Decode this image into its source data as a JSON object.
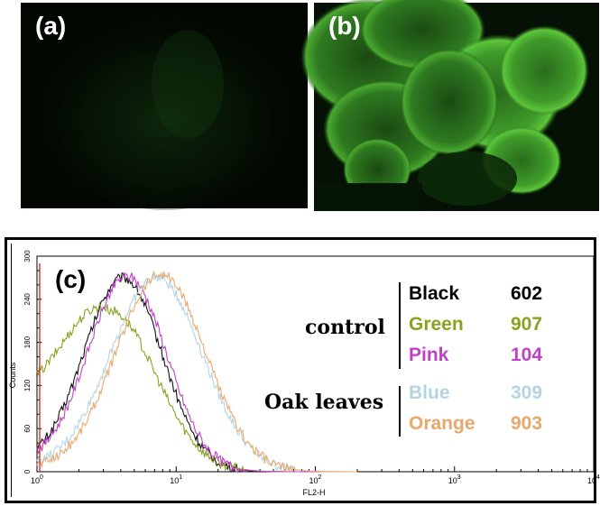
{
  "panels": {
    "a": {
      "label": "(a)"
    },
    "b": {
      "label": "(b)"
    },
    "c": {
      "label": "(c)"
    }
  },
  "histogram": {
    "x_axis_label": "FL2-H",
    "y_axis_label": "Counts",
    "y_ticks": [
      "0",
      "60",
      "120",
      "180",
      "240",
      "300"
    ],
    "x_ticks": [
      {
        "base": "10",
        "exp": "0"
      },
      {
        "base": "10",
        "exp": "1"
      },
      {
        "base": "10",
        "exp": "2"
      },
      {
        "base": "10",
        "exp": "3"
      },
      {
        "base": "10",
        "exp": "4"
      }
    ],
    "groups": {
      "control": "control",
      "oak": "Oak leaves"
    },
    "legend": [
      {
        "name": "Black",
        "value": "602",
        "color": "#111111"
      },
      {
        "name": "Green",
        "value": "907",
        "color": "#8aa21f"
      },
      {
        "name": "Pink",
        "value": "104",
        "color": "#c040c8"
      },
      {
        "name": "Blue",
        "value": "309",
        "color": "#b4d4e2"
      },
      {
        "name": "Orange",
        "value": "903",
        "color": "#e9a86a"
      }
    ]
  }
}
